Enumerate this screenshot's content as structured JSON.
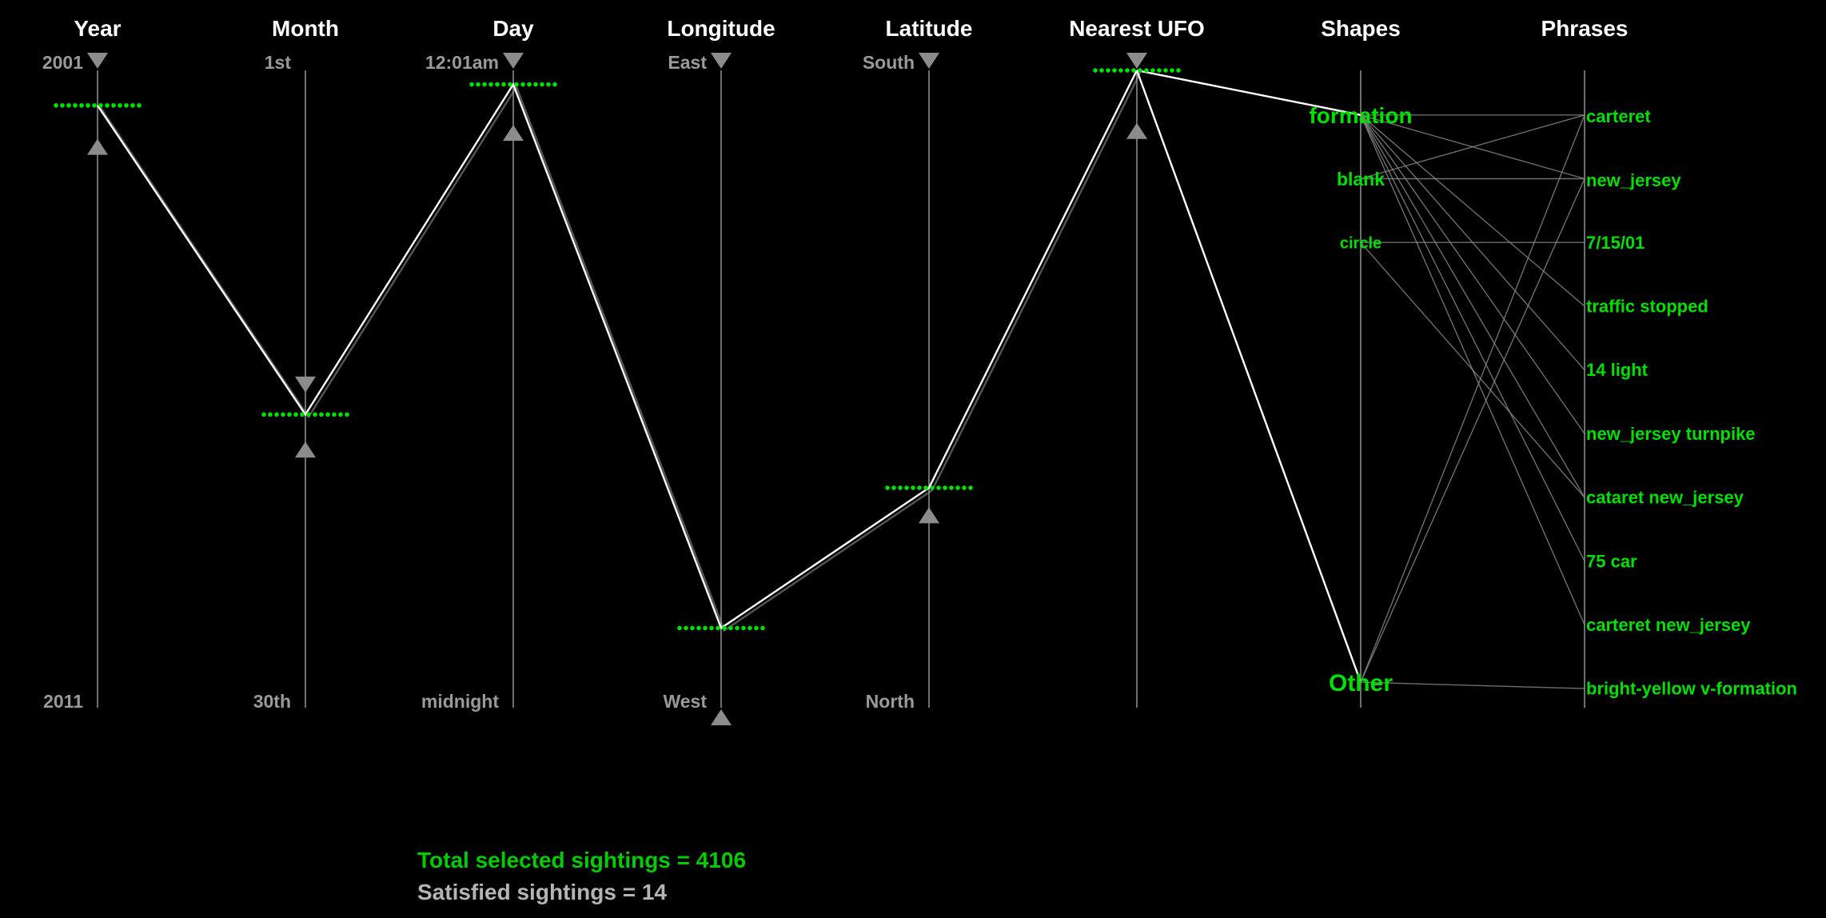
{
  "colors": {
    "background": "#000000",
    "accent": "#00e000",
    "axis": "#6e6e6e",
    "handle": "#8c8c8c",
    "polyline": "#ffffff",
    "muted_text": "#9a9a9a"
  },
  "icons": {
    "top_handle": "triangle-down-icon",
    "bottom_handle": "triangle-up-icon"
  },
  "axes": [
    {
      "key": "year",
      "title": "Year",
      "top_label": "2001",
      "bottom_label": "2011",
      "filter_top": 0.0,
      "filter_bottom": 0.105
    },
    {
      "key": "month",
      "title": "Month",
      "top_label": "1st",
      "bottom_label": "30th",
      "filter_top": 0.508,
      "filter_bottom": 0.58
    },
    {
      "key": "day",
      "title": "Day",
      "top_label": "12:01am",
      "bottom_label": "midnight",
      "filter_top": 0.0,
      "filter_bottom": 0.083
    },
    {
      "key": "longitude",
      "title": "Longitude",
      "top_label": "East",
      "bottom_label": "West",
      "filter_top": 0.0,
      "filter_bottom": 1.0
    },
    {
      "key": "latitude",
      "title": "Latitude",
      "top_label": "South",
      "bottom_label": "North",
      "filter_top": 0.0,
      "filter_bottom": 0.683
    },
    {
      "key": "nearest_ufo",
      "title": "Nearest UFO",
      "top_label": "",
      "bottom_label": "",
      "filter_top": 0.0,
      "filter_bottom": 0.08
    },
    {
      "key": "shapes",
      "title": "Shapes",
      "top_label": "",
      "bottom_label": ""
    },
    {
      "key": "phrases",
      "title": "Phrases",
      "top_label": "",
      "bottom_label": ""
    }
  ],
  "selection": {
    "year": 0.055,
    "month": 0.54,
    "day": 0.022,
    "longitude": 0.875,
    "latitude": 0.655,
    "nearest_ufo": 0.0
  },
  "shapes": [
    "formation",
    "blank",
    "circle",
    "Other"
  ],
  "shape_levels": [
    0.07,
    0.17,
    0.27,
    0.96
  ],
  "shape_sizes": [
    28,
    23,
    20,
    30
  ],
  "phrases": [
    "carteret",
    "new_jersey",
    "7/15/01",
    "traffic stopped",
    "14 light",
    "new_jersey turnpike",
    "cataret new_jersey",
    "75 car",
    "carteret new_jersey",
    "bright-yellow v-formation"
  ],
  "phrase_levels": [
    0.07,
    0.17,
    0.27,
    0.37,
    0.47,
    0.57,
    0.67,
    0.77,
    0.87,
    0.97
  ],
  "phrase_sizes": [
    25,
    27,
    21,
    21,
    21,
    21,
    21,
    21,
    21,
    21
  ],
  "satisfied_count": 14,
  "connections": [
    [
      "formation",
      "carteret"
    ],
    [
      "formation",
      "new_jersey"
    ],
    [
      "formation",
      "traffic stopped"
    ],
    [
      "formation",
      "14 light"
    ],
    [
      "formation",
      "new_jersey turnpike"
    ],
    [
      "formation",
      "cataret new_jersey"
    ],
    [
      "formation",
      "75 car"
    ],
    [
      "formation",
      "carteret new_jersey"
    ],
    [
      "blank",
      "carteret"
    ],
    [
      "blank",
      "new_jersey"
    ],
    [
      "circle",
      "7/15/01"
    ],
    [
      "circle",
      "cataret new_jersey"
    ],
    [
      "Other",
      "carteret"
    ],
    [
      "Other",
      "new_jersey"
    ],
    [
      "Other",
      "bright-yellow v-formation"
    ]
  ],
  "status": {
    "total": "Total selected sightings = 4106",
    "satisfied": "Satisfied sightings = 14"
  }
}
